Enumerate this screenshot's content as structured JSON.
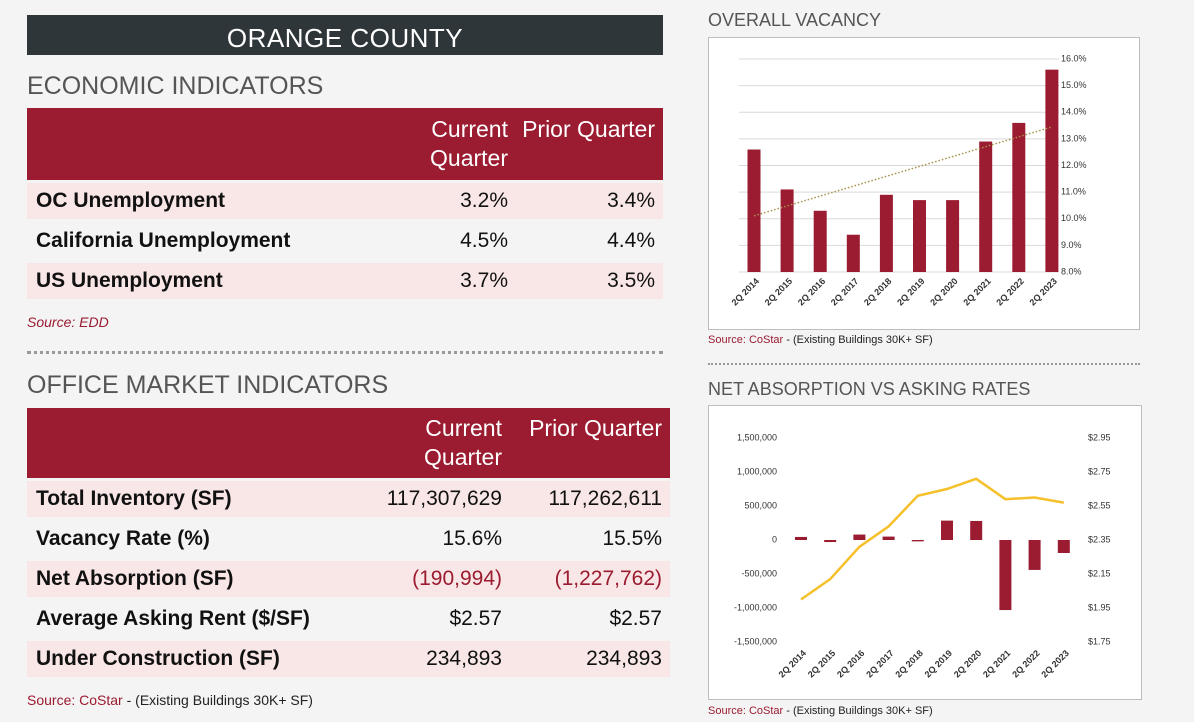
{
  "header": {
    "title": "ORANGE COUNTY"
  },
  "economic": {
    "title": "ECONOMIC INDICATORS",
    "columns": [
      "Current Quarter",
      "Prior Quarter"
    ],
    "rows": [
      {
        "cells": [
          "OC Unemployment",
          "3.2%",
          "3.4%"
        ]
      },
      {
        "cells": [
          "California Unemployment",
          "4.5%",
          "4.4%"
        ]
      },
      {
        "cells": [
          "US Unemployment",
          "3.7%",
          "3.5%"
        ]
      }
    ],
    "source": "Source: EDD"
  },
  "office": {
    "title": "OFFICE MARKET INDICATORS",
    "columns": [
      "Current Quarter",
      "Prior Quarter"
    ],
    "rows": [
      {
        "cells": [
          "Total Inventory (SF)",
          "117,307,629",
          "117,262,611"
        ]
      },
      {
        "cells": [
          "Vacancy Rate (%)",
          "15.6%",
          "15.5%"
        ]
      },
      {
        "cells": [
          "Net Absorption (SF)",
          "(190,994)",
          "(1,227,762)"
        ],
        "value_color": "#9b1b30"
      },
      {
        "cells": [
          "Average Asking Rent ($/SF)",
          "$2.57",
          "$2.57"
        ]
      },
      {
        "cells": [
          "Under Construction (SF)",
          "234,893",
          "234,893"
        ]
      }
    ],
    "source_name": "Source: CoStar",
    "source_note": "- (Existing Buildings 30K+ SF)"
  },
  "chart_data": [
    {
      "type": "bar",
      "title": "OVERALL VACANCY",
      "categories": [
        "2Q 2014",
        "2Q 2015",
        "2Q 2016",
        "2Q 2017",
        "2Q 2018",
        "2Q 2019",
        "2Q 2020",
        "2Q 2021",
        "2Q 2022",
        "2Q 2023"
      ],
      "values": [
        12.6,
        11.1,
        10.3,
        9.4,
        10.9,
        10.7,
        10.7,
        12.9,
        13.6,
        15.6
      ],
      "color": "#9b1b30",
      "ylim": [
        8,
        16
      ],
      "yticks": [
        {
          "value": 8,
          "label": "8.0%"
        },
        {
          "value": 9,
          "label": "9.0%"
        },
        {
          "value": 10,
          "label": "10.0%"
        },
        {
          "value": 11,
          "label": "11.0%"
        },
        {
          "value": 12,
          "label": "12.0%"
        },
        {
          "value": 13,
          "label": "13.0%"
        },
        {
          "value": 14,
          "label": "14.0%"
        },
        {
          "value": 15,
          "label": "15.0%"
        },
        {
          "value": 16,
          "label": "16.0%"
        }
      ],
      "grid": true,
      "trendline_color": "#a8924a",
      "source_name": "Source: CoStar",
      "source_note": "- (Existing Buildings 30K+ SF)"
    },
    {
      "type": "bar-line",
      "title": "NET ABSORPTION VS ASKING RATES",
      "categories": [
        "2Q 2014",
        "2Q 2015",
        "2Q 2016",
        "2Q 2017",
        "2Q 2018",
        "2Q 2019",
        "2Q 2020",
        "2Q 2021",
        "2Q 2022",
        "2Q 2023"
      ],
      "series": [
        {
          "kind": "bar",
          "color": "#9b1b30",
          "values": [
            45000,
            -30000,
            80000,
            50000,
            -20000,
            285000,
            280000,
            -1030000,
            -440000,
            -190994
          ]
        },
        {
          "kind": "line",
          "color": "#f5c02a",
          "axis": "y2",
          "values": [
            2.0,
            2.12,
            2.31,
            2.43,
            2.61,
            2.65,
            2.71,
            2.59,
            2.6,
            2.57
          ]
        }
      ],
      "ylim": [
        -1500000,
        1500000
      ],
      "yticks": [
        {
          "value": -1500000,
          "label": "-1,500,000"
        },
        {
          "value": -1000000,
          "label": "-1,000,000"
        },
        {
          "value": -500000,
          "label": "-500,000"
        },
        0,
        {
          "value": 500000,
          "label": "500,000"
        },
        {
          "value": 1000000,
          "label": "1,000,000"
        },
        {
          "value": 1500000,
          "label": "1,500,000"
        }
      ],
      "y2lim": [
        1.75,
        2.95
      ],
      "y2ticks": [
        {
          "value": 1.75,
          "label": "$1.75"
        },
        {
          "value": 1.95,
          "label": "$1.95"
        },
        {
          "value": 2.15,
          "label": "$2.15"
        },
        {
          "value": 2.35,
          "label": "$2.35"
        },
        {
          "value": 2.55,
          "label": "$2.55"
        },
        {
          "value": 2.75,
          "label": "$2.75"
        },
        {
          "value": 2.95,
          "label": "$2.95"
        }
      ],
      "source_name": "Source: CoStar",
      "source_note": "- (Existing Buildings 30K+ SF)"
    }
  ]
}
